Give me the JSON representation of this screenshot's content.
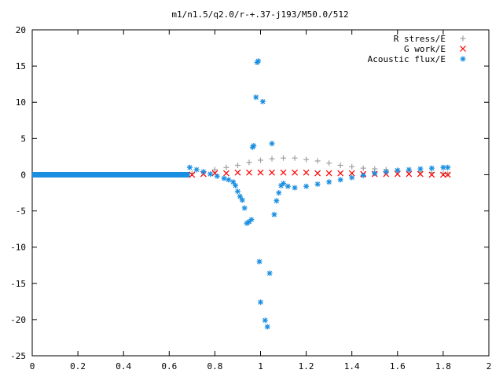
{
  "chart_data": {
    "type": "scatter",
    "title": "m1/n1.5/q2.0/r-+.37-j193/M50.0/512",
    "xlabel": "",
    "ylabel": "",
    "xlim": [
      0,
      2
    ],
    "ylim": [
      -25,
      20
    ],
    "xticks": [
      0,
      0.2,
      0.4,
      0.6,
      0.8,
      1,
      1.2,
      1.4,
      1.6,
      1.8,
      2
    ],
    "xtick_labels": [
      "0",
      "0.2",
      "0.4",
      "0.6",
      "0.8",
      "1",
      "1.2",
      "1.4",
      "1.6",
      "1.8",
      "2"
    ],
    "yticks": [
      20,
      15,
      10,
      5,
      0,
      -5,
      -10,
      -15,
      -20,
      -25
    ],
    "ytick_labels": [
      "20",
      "15",
      "10",
      "5",
      "0",
      "-5",
      "-10",
      "-15",
      "-20",
      "-25"
    ],
    "grid": false,
    "legend_position": "top-right",
    "series": [
      {
        "name": "R stress/E",
        "marker": "plus",
        "color": "#a0a0a0",
        "x": [
          0.7,
          0.75,
          0.8,
          0.85,
          0.9,
          0.95,
          1.0,
          1.05,
          1.1,
          1.15,
          1.2,
          1.25,
          1.3,
          1.35,
          1.4,
          1.45,
          1.5,
          1.55,
          1.6,
          1.65,
          1.7,
          1.75,
          1.8,
          1.82
        ],
        "y": [
          0.2,
          0.4,
          0.7,
          1.0,
          1.3,
          1.7,
          2.0,
          2.2,
          2.3,
          2.3,
          2.1,
          1.9,
          1.6,
          1.3,
          1.1,
          0.9,
          0.8,
          0.7,
          0.6,
          0.5,
          0.4,
          0.3,
          0.2,
          0.1
        ]
      },
      {
        "name": "G work/E",
        "marker": "cross",
        "color": "#ff0000",
        "x": [
          0.7,
          0.75,
          0.8,
          0.85,
          0.9,
          0.95,
          1.0,
          1.05,
          1.1,
          1.15,
          1.2,
          1.25,
          1.3,
          1.35,
          1.4,
          1.45,
          1.5,
          1.55,
          1.6,
          1.65,
          1.7,
          1.75,
          1.8,
          1.82
        ],
        "y": [
          0.0,
          0.1,
          0.2,
          0.2,
          0.3,
          0.3,
          0.3,
          0.3,
          0.3,
          0.3,
          0.3,
          0.2,
          0.2,
          0.2,
          0.2,
          0.1,
          0.1,
          0.1,
          0.1,
          0.1,
          0.1,
          0.0,
          0.0,
          0.0
        ]
      },
      {
        "name": "Acoustic flux/E",
        "marker": "star",
        "color": "#1a8ee0",
        "x": [
          0.69,
          0.72,
          0.75,
          0.78,
          0.81,
          0.84,
          0.86,
          0.88,
          0.89,
          0.9,
          0.91,
          0.92,
          0.93,
          0.94,
          0.95,
          0.96,
          0.965,
          0.97,
          0.98,
          0.985,
          0.99,
          0.995,
          1.0,
          1.01,
          1.02,
          1.03,
          1.04,
          1.05,
          1.06,
          1.07,
          1.08,
          1.09,
          1.1,
          1.12,
          1.15,
          1.2,
          1.25,
          1.3,
          1.35,
          1.4,
          1.45,
          1.5,
          1.55,
          1.6,
          1.65,
          1.7,
          1.75,
          1.8,
          1.82
        ],
        "y": [
          1.0,
          0.7,
          0.4,
          0.1,
          -0.2,
          -0.5,
          -0.7,
          -1.0,
          -1.5,
          -2.3,
          -3.0,
          -3.5,
          -4.6,
          -6.7,
          -6.5,
          -6.2,
          3.8,
          4.0,
          10.7,
          15.5,
          15.7,
          -12.0,
          -17.6,
          10.1,
          -20.1,
          -21.0,
          -13.6,
          4.3,
          -5.5,
          -3.6,
          -2.5,
          -1.5,
          -1.2,
          -1.6,
          -1.8,
          -1.6,
          -1.3,
          -1.0,
          -0.7,
          -0.4,
          -0.1,
          0.2,
          0.4,
          0.6,
          0.7,
          0.8,
          0.9,
          1.0,
          1.0
        ]
      }
    ]
  }
}
